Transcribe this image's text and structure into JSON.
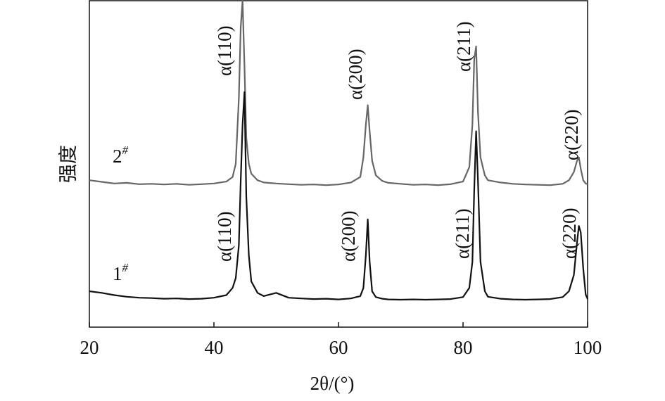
{
  "chart_data": {
    "type": "line",
    "xlabel": "2θ/(°)",
    "ylabel": "强度",
    "x": [
      20,
      22,
      24,
      26,
      28,
      30,
      32,
      34,
      36,
      38,
      40,
      42,
      43,
      43.5,
      44,
      44.3,
      44.6,
      44.9,
      45.2,
      45.6,
      46,
      47,
      48,
      50,
      52,
      54,
      56,
      58,
      60,
      62,
      63.5,
      64,
      64.4,
      64.7,
      65,
      65.4,
      66,
      67,
      68,
      70,
      72,
      74,
      76,
      78,
      80,
      81,
      81.5,
      81.8,
      82.1,
      82.4,
      82.8,
      83.5,
      84,
      86,
      88,
      90,
      92,
      94,
      96,
      97,
      97.8,
      98.3,
      98.6,
      98.9,
      99.3,
      99.7,
      100
    ],
    "series": [
      {
        "name": "2#",
        "color": "#666666",
        "values": [
          45,
          44.5,
          44,
          44.2,
          43.8,
          43.9,
          43.7,
          43.9,
          43.6,
          43.8,
          44,
          44.6,
          46,
          50,
          70,
          92,
          100,
          80,
          58,
          50,
          47,
          45,
          44.3,
          44,
          43.8,
          43.6,
          43.7,
          43.5,
          43.7,
          44.3,
          46,
          52,
          62,
          68,
          60,
          51,
          46.5,
          44.8,
          44.2,
          43.9,
          43.6,
          43.7,
          43.5,
          43.8,
          44.6,
          49,
          62,
          82,
          86,
          66,
          52,
          46.5,
          45,
          44.3,
          43.9,
          43.7,
          43.6,
          43.5,
          43.9,
          45,
          47.5,
          51,
          52,
          48.5,
          45,
          44,
          43.8
        ]
      },
      {
        "name": "1#",
        "color": "#111111",
        "values": [
          11,
          10.5,
          9.8,
          9.3,
          9,
          8.9,
          8.7,
          8.8,
          8.6,
          8.7,
          9,
          9.8,
          12,
          15,
          25,
          45,
          62,
          72,
          40,
          22,
          14,
          10.5,
          9.5,
          10.5,
          9,
          8.8,
          8.6,
          8.7,
          8.5,
          8.8,
          9.5,
          12,
          22,
          33,
          20,
          11,
          9.2,
          8.7,
          8.5,
          8.4,
          8.5,
          8.4,
          8.5,
          8.6,
          9.2,
          12,
          20,
          42,
          60,
          45,
          20,
          11,
          9.3,
          8.7,
          8.5,
          8.4,
          8.5,
          8.6,
          9.2,
          11,
          16,
          26,
          31,
          29,
          18,
          10,
          8.6
        ]
      }
    ],
    "annotations": [
      "α(110)",
      "α(200)",
      "α(211)",
      "α(220)",
      "α(110)",
      "α(200)",
      "α(211)",
      "α(220)"
    ],
    "xlim": [
      20,
      100
    ],
    "xticks": [
      20,
      40,
      60,
      80,
      100
    ],
    "ylim": [
      0,
      100
    ]
  }
}
